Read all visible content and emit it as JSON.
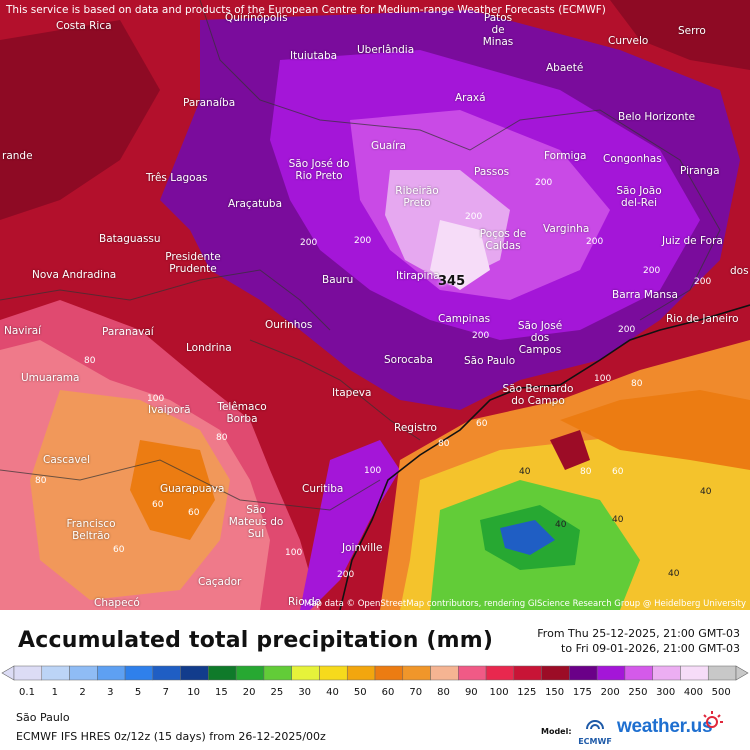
{
  "header": {
    "disclaimer": "This service is based on data and products of the European Centre for Medium-range Weather Forecasts (ECMWF)"
  },
  "map": {
    "attribution": "Map data © OpenStreetMap contributors, rendering GIScience Research Group @ Heidelberg University",
    "max_value": "345",
    "cities": [
      "Costa Rica",
      "Quirinópolis",
      "Patos de Minas",
      "Curvelo",
      "Serro",
      "Uberlândia",
      "Ituiutaba",
      "Abaeté",
      "Paranaíba",
      "Araxá",
      "Belo Horizonte",
      "Guaíra",
      "Formiga",
      "Congonhas",
      "Passos",
      "São José do Rio Preto",
      "Três Lagoas",
      "Piranga",
      "Ribeirão Preto",
      "São João del-Rei",
      "Araçatuba",
      "Poços de Caldas",
      "Varginha",
      "Juiz de Fora",
      "Bataguassu",
      "Presidente Prudente",
      "Nova Andradina",
      "Bauru",
      "Itirapina",
      "Barra Mansa",
      "Campinas",
      "São José dos Campos",
      "Rio de Janeiro",
      "Naviraí",
      "Paranavaí",
      "Ourinhos",
      "Londrina",
      "Sorocaba",
      "São Paulo",
      "São Bernardo do Campo",
      "Umuarama",
      "Itapeva",
      "Ivaiporã",
      "Telêmaco Borba",
      "Registro",
      "Cascavel",
      "Guarapuava",
      "Curitiba",
      "Francisco Beltrão",
      "São Mateus do Sul",
      "Joinville",
      "Caçador",
      "Chapecó",
      "Rio do",
      "rande",
      "dos"
    ],
    "values": [
      "200",
      "200",
      "200",
      "200",
      "200",
      "200",
      "200",
      "200",
      "200",
      "200",
      "100",
      "100",
      "100",
      "100",
      "80",
      "80",
      "80",
      "80",
      "80",
      "80",
      "60",
      "60",
      "60",
      "60",
      "60",
      "40",
      "40",
      "40",
      "40",
      "40"
    ]
  },
  "footer": {
    "title": "Accumulated total precipitation (mm)",
    "period_line1": "From Thu 25-12-2025, 21:00 GMT-03",
    "period_line2": "to Fri 09-01-2026, 21:00 GMT-03",
    "location": "São Paulo",
    "model_line": "ECMWF IFS HRES 0z/12z (15 days) from 26-12-2025/00z",
    "model_label": "Model:",
    "ecmwf_logo": "ECMWF",
    "brand": "weather.us"
  },
  "legend": {
    "labels": [
      "0.1",
      "1",
      "2",
      "3",
      "5",
      "7",
      "10",
      "15",
      "20",
      "25",
      "30",
      "40",
      "50",
      "60",
      "70",
      "80",
      "90",
      "100",
      "125",
      "150",
      "175",
      "200",
      "250",
      "300",
      "400",
      "500"
    ],
    "colors": [
      "#dcdcf5",
      "#bcd4f6",
      "#8fbcf5",
      "#5ea0f2",
      "#2f80eb",
      "#1f5ec4",
      "#123c8c",
      "#0f7a2a",
      "#27a832",
      "#62cc38",
      "#e6f23a",
      "#f6da1c",
      "#f2a60e",
      "#ec7c12",
      "#f0962a",
      "#f5b492",
      "#f05a86",
      "#e8284e",
      "#c81436",
      "#9c0c26",
      "#6a0088",
      "#a416d8",
      "#d45aea",
      "#ecaef2",
      "#f6dcf8",
      "#c8c8c8"
    ]
  }
}
